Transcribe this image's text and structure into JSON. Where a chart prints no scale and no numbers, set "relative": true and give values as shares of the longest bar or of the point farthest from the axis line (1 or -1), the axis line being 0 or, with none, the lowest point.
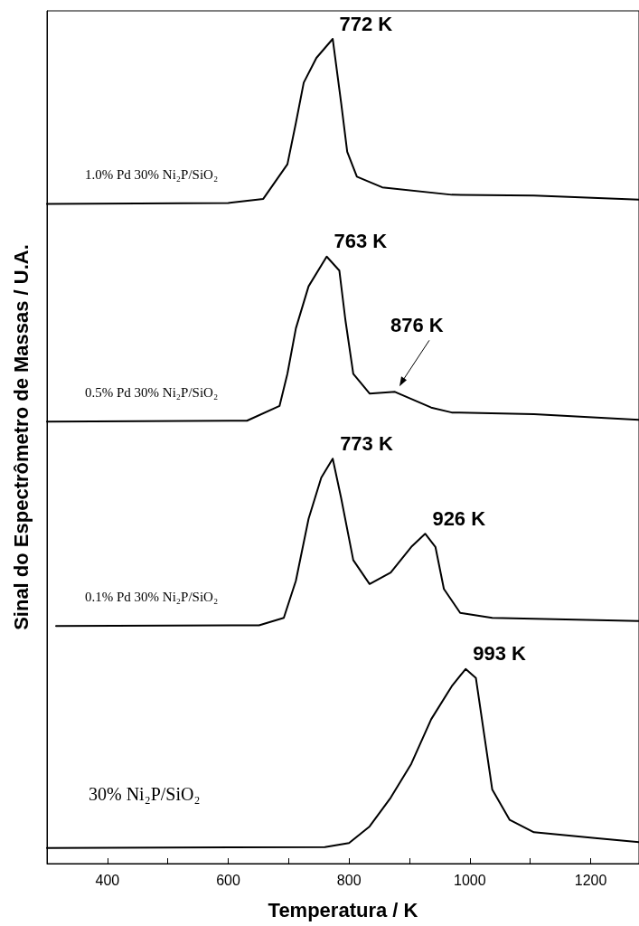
{
  "chart_data": {
    "type": "line",
    "relative": true,
    "xlabel": "Temperatura / K",
    "ylabel": "Sinal do Espectrômetro de Massas / U.A.",
    "xlim": [
      300,
      1280
    ],
    "xticks": [
      400,
      {
        "value": 500,
        "label": null
      },
      600,
      {
        "value": 700,
        "label": null
      },
      800,
      {
        "value": 900,
        "label": null
      },
      1000,
      {
        "value": 1100,
        "label": null
      },
      1200
    ],
    "tick_labels": "x",
    "grid": false,
    "legend": false,
    "marker": "none",
    "line_style": "solid",
    "series": [
      {
        "name": "1.0% Pd 30% Ni₂P/SiO₂",
        "color": "#000000",
        "x": [
          300,
          600,
          658,
          698,
          712,
          725,
          746,
          773,
          787,
          797,
          813,
          855,
          970,
          1106,
          1280
        ],
        "values": [
          0.8,
          0.801,
          0.806,
          0.848,
          0.898,
          0.947,
          0.977,
          1.0,
          0.922,
          0.863,
          0.833,
          0.82,
          0.811,
          0.81,
          0.805
        ]
      },
      {
        "name": "0.5% Pd 30% Ni₂P/SiO₂",
        "color": "#000000",
        "x": [
          300,
          631,
          685,
          698,
          712,
          733,
          763,
          784,
          794,
          807,
          834,
          876,
          882,
          936,
          970,
          1106,
          1280
        ],
        "values": [
          0.536,
          0.537,
          0.555,
          0.594,
          0.649,
          0.7,
          0.736,
          0.719,
          0.659,
          0.594,
          0.57,
          0.572,
          0.57,
          0.553,
          0.547,
          0.545,
          0.538
        ]
      },
      {
        "name": "0.1% Pd 30% Ni₂P/SiO₂",
        "color": "#000000",
        "x": [
          315,
          651,
          692,
          712,
          733,
          754,
          773,
          787,
          807,
          834,
          869,
          903,
          926,
          943,
          957,
          984,
          1037,
          1280
        ],
        "values": [
          0.288,
          0.289,
          0.298,
          0.343,
          0.418,
          0.468,
          0.491,
          0.443,
          0.368,
          0.339,
          0.353,
          0.384,
          0.4,
          0.384,
          0.333,
          0.304,
          0.298,
          0.294
        ]
      },
      {
        "name": "30% Ni₂P/SiO₂",
        "color": "#000000",
        "x": [
          300,
          760,
          800,
          834,
          869,
          903,
          936,
          970,
          993,
          1010,
          1024,
          1037,
          1066,
          1106,
          1207,
          1280
        ],
        "values": [
          0.019,
          0.02,
          0.025,
          0.045,
          0.08,
          0.121,
          0.175,
          0.215,
          0.236,
          0.225,
          0.155,
          0.09,
          0.053,
          0.038,
          0.031,
          0.026
        ]
      }
    ],
    "annotations": [
      {
        "text": "772 K",
        "x": 772,
        "y": 1.0
      },
      {
        "text": "763 K",
        "x": 763,
        "y": 0.736
      },
      {
        "text": "876 K",
        "x": 876,
        "y": 0.572
      },
      {
        "text": "773 K",
        "x": 773,
        "y": 0.491
      },
      {
        "text": "926 K",
        "x": 926,
        "y": 0.4
      },
      {
        "text": "993 K",
        "x": 993,
        "y": 0.236
      }
    ]
  }
}
